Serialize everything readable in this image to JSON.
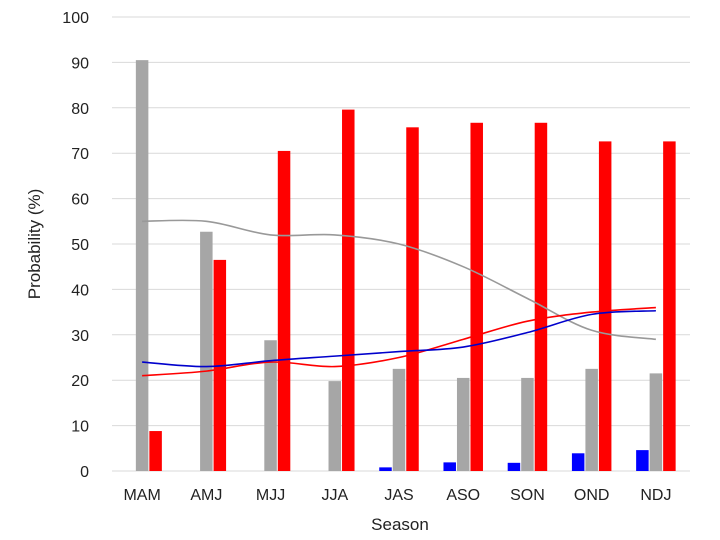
{
  "chart_data": {
    "type": "bar",
    "title": "",
    "xlabel": "Season",
    "ylabel": "Probability (%)",
    "ylim": [
      0,
      100
    ],
    "yticks": [
      0,
      10,
      20,
      30,
      40,
      50,
      60,
      70,
      80,
      90,
      100
    ],
    "grid": "horizontal",
    "legend": "none",
    "categories": [
      "MAM",
      "AMJ",
      "MJJ",
      "JJA",
      "JAS",
      "ASO",
      "SON",
      "OND",
      "NDJ"
    ],
    "series": [
      {
        "color": "#0000ff",
        "values": [
          0,
          0,
          0,
          0,
          0.8,
          1.9,
          1.8,
          3.9,
          4.6
        ]
      },
      {
        "color": "#a6a6a6",
        "values": [
          90.5,
          52.7,
          28.8,
          19.8,
          22.5,
          20.5,
          20.5,
          22.5,
          21.5
        ]
      },
      {
        "color": "#ff0000",
        "values": [
          8.8,
          46.5,
          70.5,
          79.6,
          75.7,
          76.7,
          76.7,
          72.6,
          72.6
        ]
      }
    ],
    "lines": [
      {
        "color": "#999999",
        "values": [
          55,
          55,
          52,
          52,
          50,
          45,
          38,
          31,
          29
        ]
      },
      {
        "color": "#ff0000",
        "values": [
          21,
          22,
          24,
          23,
          25,
          29,
          33,
          35,
          36
        ]
      },
      {
        "color": "#0000cc",
        "values": [
          24,
          23,
          24.3,
          25.3,
          26.3,
          27.3,
          30.5,
          34.5,
          35.3
        ]
      }
    ]
  }
}
